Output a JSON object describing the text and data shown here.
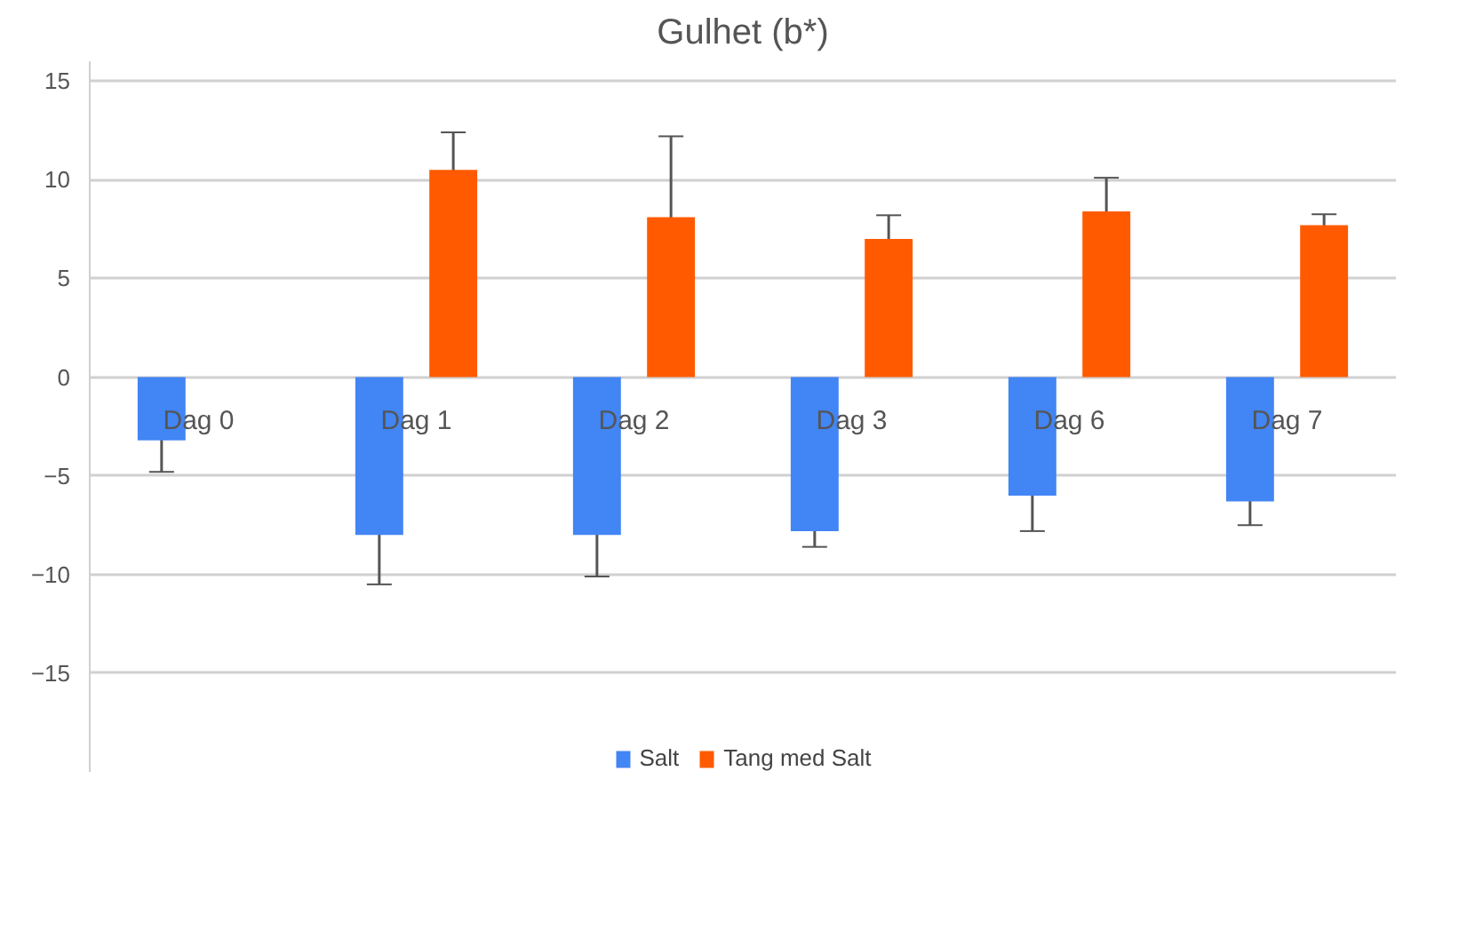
{
  "chart_data": {
    "type": "bar",
    "title": "Gulhet (b*)",
    "categories": [
      "Dag 0",
      "Dag 1",
      "Dag 2",
      "Dag 3",
      "Dag 6",
      "Dag 7"
    ],
    "series": [
      {
        "name": "Salt",
        "color": "#4285f4",
        "values": [
          -3.2,
          -8.0,
          -8.0,
          -7.8,
          -6.0,
          -6.3
        ],
        "errors": [
          1.6,
          2.5,
          2.1,
          0.8,
          1.8,
          1.2
        ]
      },
      {
        "name": "Tang med Salt",
        "color": "#ff5a00",
        "values": [
          null,
          10.5,
          8.1,
          7.0,
          8.4,
          7.7
        ],
        "errors": [
          null,
          1.9,
          4.1,
          1.2,
          1.7,
          0.55
        ]
      }
    ],
    "ylim": [
      -20,
      16
    ],
    "yticks": [
      -15,
      -10,
      -5,
      0,
      5,
      10,
      15
    ],
    "grid": "y",
    "legend": "bottom"
  }
}
